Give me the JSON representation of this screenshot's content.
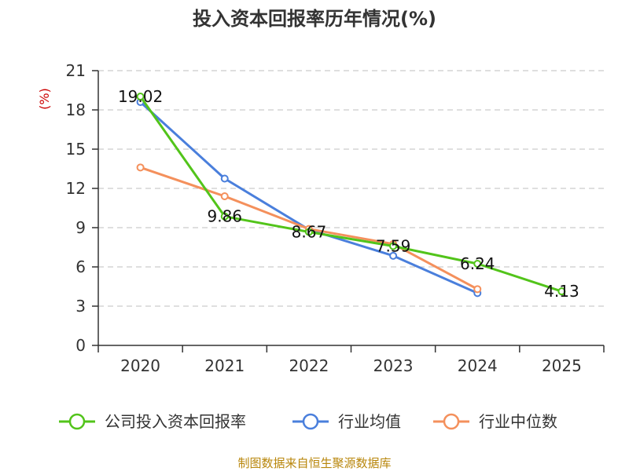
{
  "chart_data": {
    "type": "line",
    "title": "投入资本回报率历年情况(%)",
    "ylabel": "(%)",
    "xlabel": "",
    "categories": [
      "2020",
      "2021",
      "2022",
      "2023",
      "2024",
      "2025"
    ],
    "ylim": [
      0,
      21
    ],
    "yticks": [
      0,
      3,
      6,
      9,
      12,
      15,
      18,
      21
    ],
    "grid": true,
    "legend_position": "bottom",
    "series": [
      {
        "name": "公司投入资本回报率",
        "color": "#52c41a",
        "values": [
          19.02,
          9.86,
          8.67,
          7.59,
          6.24,
          4.13
        ],
        "labels": [
          "19.02",
          "9.86",
          "8.67",
          "7.59",
          "6.24",
          "4.13"
        ]
      },
      {
        "name": "行业均值",
        "color": "#4a7fdc",
        "values": [
          18.6,
          12.75,
          8.85,
          6.85,
          4.0,
          null
        ]
      },
      {
        "name": "行业中位数",
        "color": "#f4905c",
        "values": [
          13.6,
          11.4,
          8.9,
          7.75,
          4.3,
          null
        ]
      }
    ]
  },
  "colors": {
    "axis": "#333333",
    "grid": "#cccccc",
    "unit": "#cc0000",
    "source": "#b8860b"
  },
  "source": "制图数据来自恒生聚源数据库"
}
